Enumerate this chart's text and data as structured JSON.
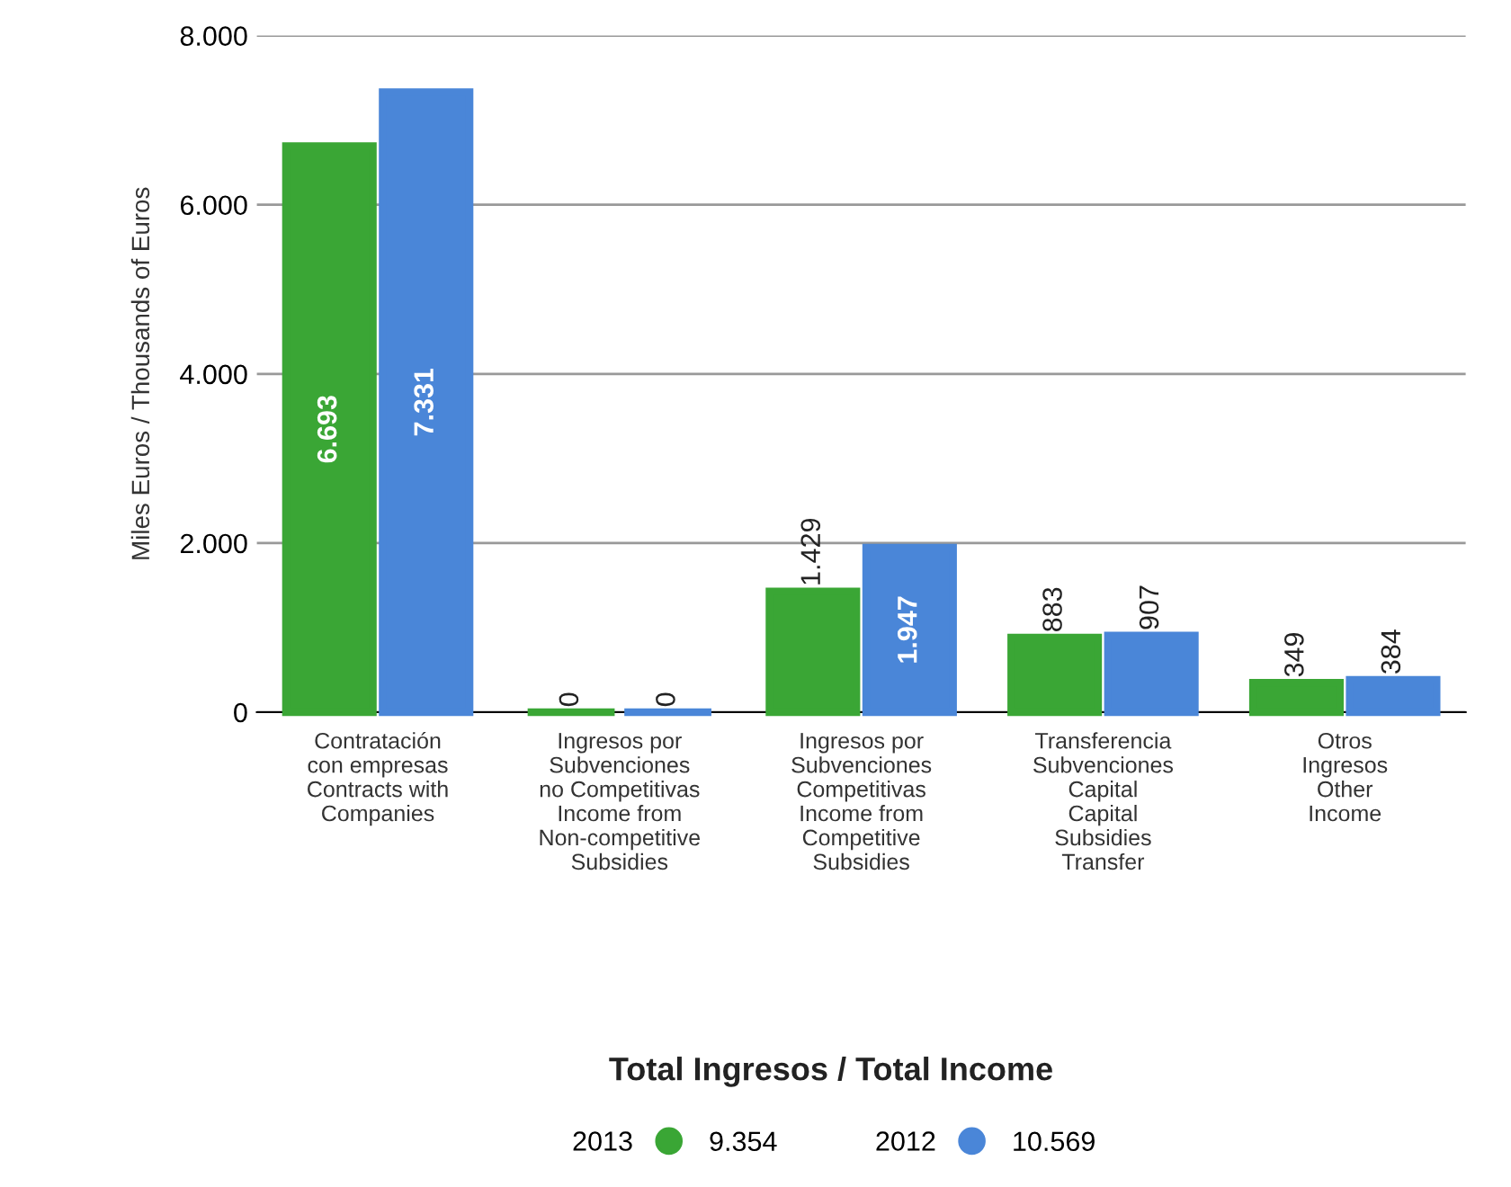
{
  "chart_data": {
    "type": "bar",
    "title": "Total Ingresos / Total Income",
    "ylabel": "Miles Euros / Thousands of Euros",
    "categories": [
      "Contratación\ncon empresas\nContracts with\nCompanies",
      "Ingresos por\nSubvenciones\nno Competitivas\nIncome from\nNon-competitive\nSubsidies",
      "Ingresos por\nSubvenciones\nCompetitivas\nIncome from\nCompetitive\nSubsidies",
      "Transferencia\nSubvenciones\nCapital\nCapital\nSubsidies\nTransfer",
      "Otros\nIngresos\nOther\nIncome"
    ],
    "series": [
      {
        "name": "2013",
        "color": "#3aa635",
        "values": [
          6693,
          0,
          1429,
          883,
          349
        ],
        "value_labels": [
          "6.693",
          "0",
          "1.429",
          "883",
          "349"
        ]
      },
      {
        "name": "2012",
        "color": "#4a86d8",
        "values": [
          7331,
          0,
          1947,
          907,
          384
        ],
        "value_labels": [
          "7.331",
          "0",
          "1.947",
          "907",
          "384"
        ]
      }
    ],
    "ylim": [
      0,
      8000
    ],
    "yticks": [
      {
        "value": 0,
        "label": "0"
      },
      {
        "value": 2000,
        "label": "2.000"
      },
      {
        "value": 4000,
        "label": "4.000"
      },
      {
        "value": 6000,
        "label": "6.000"
      },
      {
        "value": 8000,
        "label": "8.000"
      }
    ],
    "grid": "y",
    "legend": "bottom",
    "annotations": [
      "9.354",
      "10.569"
    ]
  }
}
